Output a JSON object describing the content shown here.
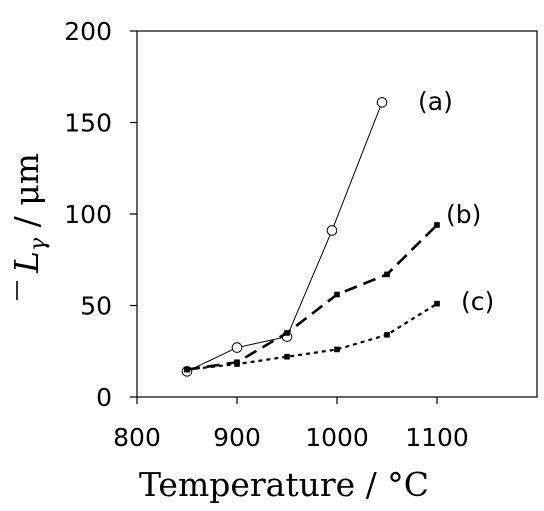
{
  "chart_data": {
    "type": "line",
    "title": "",
    "xlabel": "Temperature / °C",
    "ylabel": {
      "symbol": "L",
      "subscript": "γ",
      "separator": " / ",
      "unit": "μm"
    },
    "xlim": [
      800,
      1200
    ],
    "ylim": [
      0,
      200
    ],
    "x_ticks": [
      800,
      900,
      1000,
      1100
    ],
    "y_ticks": [
      0,
      50,
      100,
      150,
      200
    ],
    "grid": false,
    "legend": "none",
    "series": [
      {
        "label": "(a)",
        "line_style": "solid",
        "marker": "open-circle",
        "color": "#000000",
        "points": [
          {
            "x": 850,
            "y": 14
          },
          {
            "x": 900,
            "y": 27
          },
          {
            "x": 950,
            "y": 33
          },
          {
            "x": 995,
            "y": 91
          },
          {
            "x": 1045,
            "y": 161
          }
        ]
      },
      {
        "label": "(b)",
        "line_style": "long-dash",
        "marker": "small-filled-square",
        "color": "#000000",
        "points": [
          {
            "x": 850,
            "y": 15
          },
          {
            "x": 900,
            "y": 19
          },
          {
            "x": 950,
            "y": 35
          },
          {
            "x": 1000,
            "y": 56
          },
          {
            "x": 1050,
            "y": 67
          },
          {
            "x": 1100,
            "y": 94
          }
        ]
      },
      {
        "label": "(c)",
        "line_style": "short-dash",
        "marker": "small-filled-square",
        "color": "#000000",
        "points": [
          {
            "x": 850,
            "y": 15
          },
          {
            "x": 900,
            "y": 18
          },
          {
            "x": 950,
            "y": 22
          },
          {
            "x": 1000,
            "y": 26
          },
          {
            "x": 1050,
            "y": 34
          },
          {
            "x": 1100,
            "y": 51
          }
        ]
      }
    ]
  }
}
